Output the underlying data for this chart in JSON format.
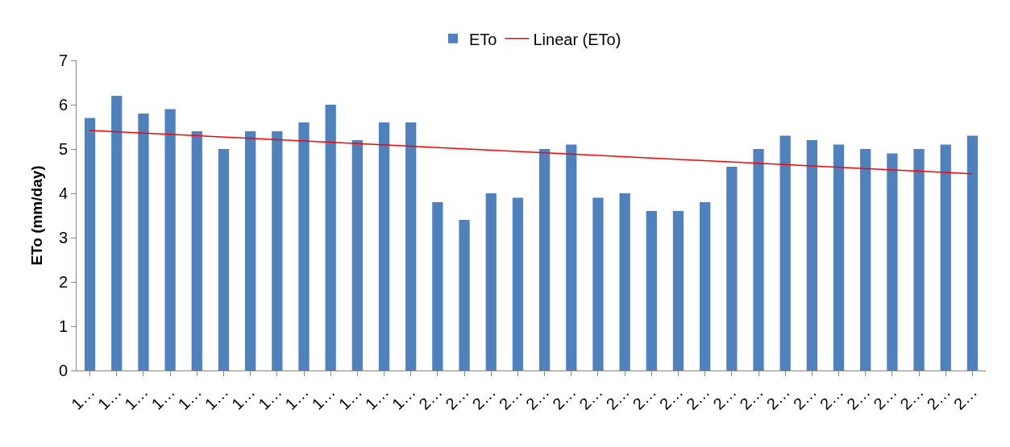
{
  "chart_data": {
    "type": "bar",
    "ylabel": "ETo (mm/day)",
    "categories": [
      "1…",
      "1…",
      "1…",
      "1…",
      "1…",
      "1…",
      "1…",
      "1…",
      "1…",
      "1…",
      "1…",
      "1…",
      "1…",
      "2…",
      "2…",
      "2…",
      "2…",
      "2…",
      "2…",
      "2…",
      "2…",
      "2…",
      "2…",
      "2…",
      "2…",
      "2…",
      "2…",
      "2…",
      "2…",
      "2…",
      "2…",
      "2…",
      "2…",
      "2…"
    ],
    "series": [
      {
        "name": "ETo",
        "color": "#4f81bd",
        "values": [
          5.7,
          6.2,
          5.8,
          5.9,
          5.4,
          5.0,
          5.4,
          5.4,
          5.6,
          6.0,
          5.2,
          5.6,
          5.6,
          3.8,
          3.4,
          4.0,
          3.9,
          5.0,
          5.1,
          3.9,
          4.0,
          3.6,
          3.6,
          3.8,
          4.6,
          5.0,
          5.3,
          5.2,
          5.1,
          5.0,
          4.9,
          5.0,
          5.1,
          5.3
        ]
      },
      {
        "name": "Linear (ETo)",
        "type": "line",
        "color": "#ff0000",
        "values": [
          5.42,
          null,
          null,
          null,
          null,
          null,
          null,
          null,
          null,
          null,
          null,
          null,
          null,
          null,
          null,
          null,
          null,
          null,
          null,
          null,
          null,
          null,
          null,
          null,
          null,
          null,
          null,
          null,
          null,
          null,
          null,
          null,
          null,
          4.44
        ]
      }
    ],
    "ylim": [
      0,
      7
    ],
    "yticks": [
      0,
      1,
      2,
      3,
      4,
      5,
      6,
      7
    ],
    "legend": "top",
    "marker": "none",
    "line_style": "solid"
  }
}
